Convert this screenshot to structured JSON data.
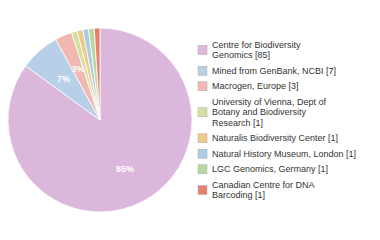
{
  "chart_data": {
    "type": "pie",
    "categories": [
      "Centre for Biodiversity\nGenomics [85]",
      "Mined from GenBank, NCBI [7]",
      "Macrogen, Europe [3]",
      "University of Vienna, Dept of\nBotany and Biodiversity\nResearch [1]",
      "Naturalis Biodiversity Center [1]",
      "Natural History Museum, London [1]",
      "LGC Genomics, Germany [1]",
      "Canadian Centre for DNA\nBarcoding [1]"
    ],
    "values": [
      85,
      7,
      3,
      1,
      1,
      1,
      1,
      1
    ],
    "value_labels": [
      "85%",
      "7%",
      "3%",
      null,
      null,
      null,
      null,
      null
    ],
    "colors": [
      "#dbb8db",
      "#b8cfe8",
      "#f0b8b0",
      "#d4e0a0",
      "#f0c88a",
      "#a8cce0",
      "#b8d8a0",
      "#e88070"
    ],
    "data_labels": true,
    "legend": "right"
  }
}
